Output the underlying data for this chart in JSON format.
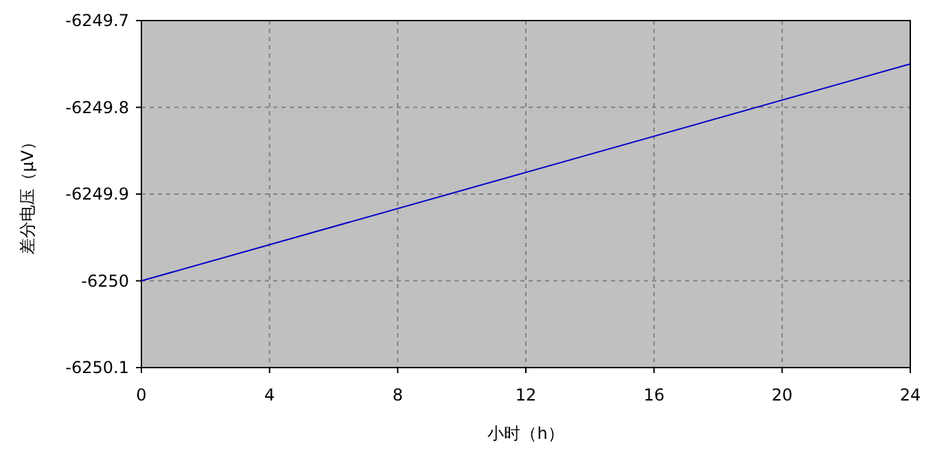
{
  "chart_data": {
    "type": "line",
    "xlabel": "小时（h）",
    "ylabel": "差分电压（μV）",
    "x": [
      0,
      24
    ],
    "series": [
      {
        "color": "#0000c8",
        "values": [
          -6250,
          -6249.75
        ]
      }
    ],
    "xlim": [
      0,
      24
    ],
    "ylim": [
      -6250.1,
      -6249.7
    ],
    "xticks": [
      0,
      4,
      8,
      12,
      16,
      20,
      24
    ],
    "yticks": [
      -6250.1,
      -6250,
      -6249.9,
      -6249.8,
      -6249.7
    ],
    "grid": true
  }
}
